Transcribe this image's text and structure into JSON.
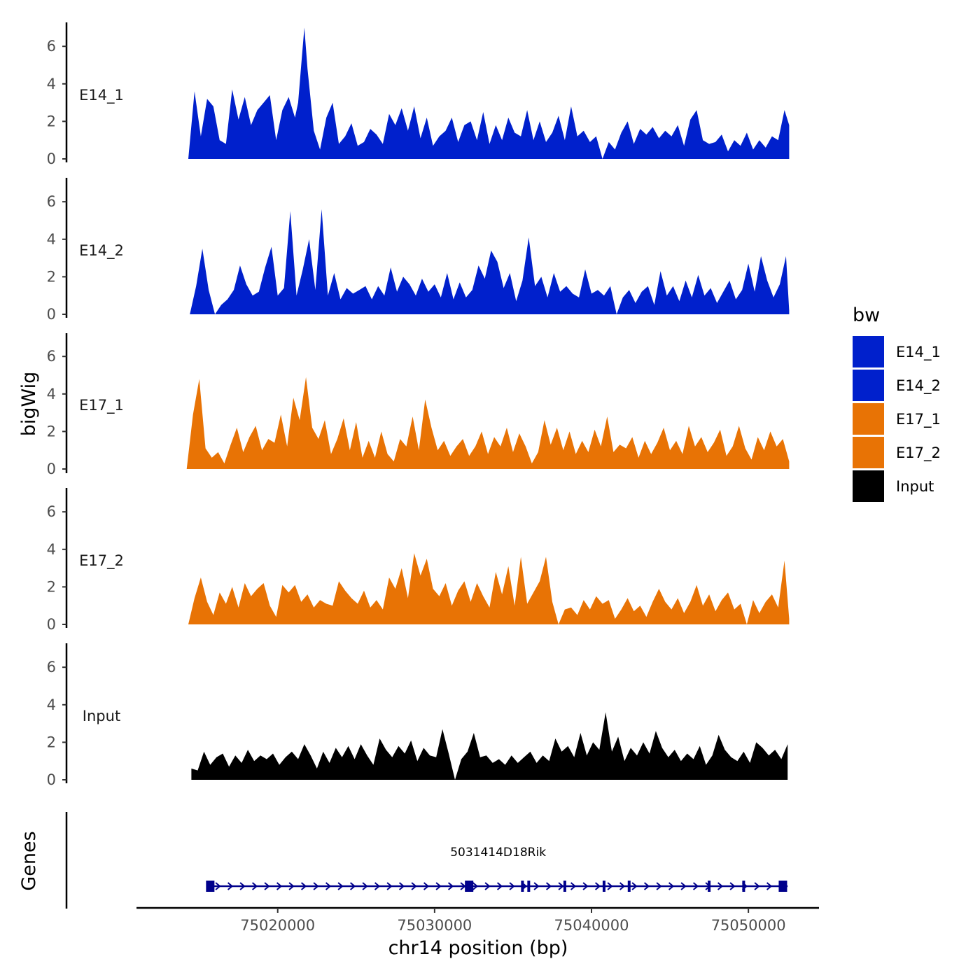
{
  "chart_data": {
    "type": "area",
    "chromosome": "chr14",
    "xlabel": "chr14 position (bp)",
    "ylabel": "bigWig",
    "genes_label": "Genes",
    "xlim": [
      75011000,
      75054500
    ],
    "ylim": [
      0,
      7.2
    ],
    "x_ticks": [
      {
        "value": 75020000,
        "label": "75020000"
      },
      {
        "value": 75030000,
        "label": "75030000"
      },
      {
        "value": 75040000,
        "label": "75040000"
      },
      {
        "value": 75050000,
        "label": "75050000"
      }
    ],
    "y_ticks": [
      {
        "value": 0,
        "label": "0"
      },
      {
        "value": 2,
        "label": "2"
      },
      {
        "value": 4,
        "label": "4"
      },
      {
        "value": 6,
        "label": "6"
      }
    ],
    "legend": {
      "title": "bw",
      "entries": [
        {
          "name": "E14_1",
          "color": "#0020CC"
        },
        {
          "name": "E14_2",
          "color": "#0020CC"
        },
        {
          "name": "E17_1",
          "color": "#E87305"
        },
        {
          "name": "E17_2",
          "color": "#E87305"
        },
        {
          "name": "Input",
          "color": "#000000"
        }
      ]
    },
    "series": [
      {
        "name": "E14_1",
        "color": "#0020CC",
        "x": [
          75014300,
          75014700,
          75015100,
          75015500,
          75015900,
          75016300,
          75016700,
          75017100,
          75017500,
          75017900,
          75018300,
          75018700,
          75019100,
          75019500,
          75019900,
          75020300,
          75020700,
          75021100,
          75021300,
          75021500,
          75021700,
          75021900,
          75022300,
          75022700,
          75023100,
          75023500,
          75023900,
          75024300,
          75024700,
          75025100,
          75025500,
          75025900,
          75026300,
          75026700,
          75027100,
          75027500,
          75027900,
          75028300,
          75028700,
          75029100,
          75029500,
          75029900,
          75030300,
          75030700,
          75031100,
          75031500,
          75031900,
          75032300,
          75032700,
          75033100,
          75033500,
          75033900,
          75034300,
          75034700,
          75035100,
          75035500,
          75035900,
          75036300,
          75036700,
          75037100,
          75037500,
          75037900,
          75038300,
          75038700,
          75039100,
          75039500,
          75039900,
          75040300,
          75040700,
          75041100,
          75041500,
          75041900,
          75042300,
          75042700,
          75043100,
          75043500,
          75043900,
          75044300,
          75044700,
          75045100,
          75045500,
          75045900,
          75046300,
          75046700,
          75047100,
          75047500,
          75047900,
          75048300,
          75048700,
          75049100,
          75049500,
          75049900,
          75050300,
          75050700,
          75051100,
          75051500,
          75051900,
          75052300,
          75052600
        ],
        "values": [
          0,
          3.6,
          1.2,
          3.2,
          2.8,
          1.0,
          0.8,
          3.7,
          2.1,
          3.3,
          1.8,
          2.6,
          3.0,
          3.4,
          1.0,
          2.6,
          3.3,
          2.2,
          3.0,
          5.0,
          7.0,
          4.8,
          1.5,
          0.5,
          2.2,
          3.0,
          0.8,
          1.2,
          1.9,
          0.7,
          0.9,
          1.6,
          1.3,
          0.8,
          2.4,
          1.8,
          2.7,
          1.5,
          2.8,
          1.1,
          2.2,
          0.7,
          1.2,
          1.5,
          2.2,
          0.9,
          1.8,
          2.0,
          1.0,
          2.5,
          0.8,
          1.8,
          1.0,
          2.2,
          1.4,
          1.2,
          2.6,
          1.0,
          2.0,
          0.9,
          1.4,
          2.3,
          1.0,
          2.8,
          1.2,
          1.5,
          0.9,
          1.2,
          0,
          0.9,
          0.5,
          1.4,
          2.0,
          0.8,
          1.6,
          1.3,
          1.7,
          1.1,
          1.5,
          1.2,
          1.8,
          0.7,
          2.1,
          2.6,
          1.0,
          0.8,
          0.9,
          1.3,
          0.4,
          1.0,
          0.7,
          1.4,
          0.5,
          1.0,
          0.6,
          1.2,
          1.0,
          2.6,
          1.8
        ]
      },
      {
        "name": "E14_2",
        "color": "#0020CC",
        "x": [
          75014400,
          75014800,
          75015200,
          75015600,
          75016000,
          75016400,
          75016800,
          75017200,
          75017600,
          75018000,
          75018400,
          75018800,
          75019200,
          75019600,
          75020000,
          75020400,
          75020800,
          75021200,
          75021600,
          75022000,
          75022400,
          75022800,
          75023200,
          75023600,
          75024000,
          75024400,
          75024800,
          75025200,
          75025600,
          75026000,
          75026400,
          75026800,
          75027200,
          75027600,
          75028000,
          75028400,
          75028800,
          75029200,
          75029600,
          75030000,
          75030400,
          75030800,
          75031200,
          75031600,
          75032000,
          75032400,
          75032800,
          75033200,
          75033600,
          75034000,
          75034400,
          75034800,
          75035200,
          75035600,
          75036000,
          75036400,
          75036800,
          75037200,
          75037600,
          75038000,
          75038400,
          75038800,
          75039200,
          75039600,
          75040000,
          75040400,
          75040800,
          75041200,
          75041600,
          75042000,
          75042400,
          75042800,
          75043200,
          75043600,
          75044000,
          75044400,
          75044800,
          75045200,
          75045600,
          75046000,
          75046400,
          75046800,
          75047200,
          75047600,
          75048000,
          75048400,
          75048800,
          75049200,
          75049600,
          75050000,
          75050400,
          75050800,
          75051200,
          75051600,
          75052000,
          75052400,
          75052600
        ],
        "values": [
          0,
          1.5,
          3.5,
          1.3,
          0,
          0.5,
          0.8,
          1.3,
          2.6,
          1.6,
          1.0,
          1.2,
          2.5,
          3.6,
          1.0,
          1.4,
          5.5,
          1.0,
          2.4,
          4.0,
          1.3,
          5.6,
          1.0,
          2.2,
          0.8,
          1.4,
          1.1,
          1.3,
          1.5,
          0.8,
          1.5,
          1.0,
          2.5,
          1.2,
          2.0,
          1.6,
          1.0,
          1.9,
          1.2,
          1.6,
          0.9,
          2.2,
          0.8,
          1.7,
          0.9,
          1.3,
          2.6,
          1.9,
          3.4,
          2.8,
          1.4,
          2.2,
          0.7,
          1.8,
          4.1,
          1.5,
          2.0,
          0.9,
          2.2,
          1.2,
          1.5,
          1.1,
          0.9,
          2.4,
          1.1,
          1.3,
          1.0,
          1.5,
          0,
          0.9,
          1.3,
          0.6,
          1.2,
          1.5,
          0.5,
          2.3,
          1.0,
          1.5,
          0.7,
          1.8,
          0.9,
          2.1,
          1.0,
          1.4,
          0.6,
          1.2,
          1.8,
          0.8,
          1.3,
          2.7,
          1.2,
          3.1,
          1.8,
          0.9,
          1.6,
          3.1,
          0.2
        ]
      },
      {
        "name": "E17_1",
        "color": "#E87305",
        "x": [
          75014200,
          75014600,
          75015000,
          75015400,
          75015800,
          75016200,
          75016600,
          75017000,
          75017400,
          75017800,
          75018200,
          75018600,
          75019000,
          75019400,
          75019800,
          75020200,
          75020600,
          75021000,
          75021400,
          75021800,
          75022200,
          75022600,
          75023000,
          75023400,
          75023800,
          75024200,
          75024600,
          75025000,
          75025400,
          75025800,
          75026200,
          75026600,
          75027000,
          75027400,
          75027800,
          75028200,
          75028600,
          75029000,
          75029400,
          75029800,
          75030200,
          75030600,
          75031000,
          75031400,
          75031800,
          75032200,
          75032600,
          75033000,
          75033400,
          75033800,
          75034200,
          75034600,
          75035000,
          75035400,
          75035800,
          75036200,
          75036600,
          75037000,
          75037400,
          75037800,
          75038200,
          75038600,
          75039000,
          75039400,
          75039800,
          75040200,
          75040600,
          75041000,
          75041400,
          75041800,
          75042200,
          75042600,
          75043000,
          75043400,
          75043800,
          75044200,
          75044600,
          75045000,
          75045400,
          75045800,
          75046200,
          75046600,
          75047000,
          75047400,
          75047800,
          75048200,
          75048600,
          75049000,
          75049400,
          75049800,
          75050200,
          75050600,
          75051000,
          75051400,
          75051800,
          75052200,
          75052600
        ],
        "values": [
          0,
          2.9,
          4.8,
          1.1,
          0.6,
          0.9,
          0.3,
          1.3,
          2.2,
          0.9,
          1.7,
          2.3,
          1.0,
          1.6,
          1.4,
          2.9,
          1.2,
          3.8,
          2.6,
          4.9,
          2.2,
          1.6,
          2.6,
          0.8,
          1.6,
          2.7,
          1.0,
          2.5,
          0.6,
          1.5,
          0.6,
          2.0,
          0.8,
          0.4,
          1.6,
          1.2,
          2.8,
          1.0,
          3.7,
          2.2,
          1.0,
          1.5,
          0.7,
          1.2,
          1.6,
          0.7,
          1.2,
          2.0,
          0.8,
          1.7,
          1.2,
          2.2,
          0.9,
          1.9,
          1.2,
          0.3,
          0.9,
          2.6,
          1.3,
          2.2,
          1.0,
          2.0,
          0.8,
          1.5,
          0.9,
          2.1,
          1.2,
          2.8,
          0.9,
          1.3,
          1.1,
          1.7,
          0.6,
          1.5,
          0.8,
          1.4,
          2.2,
          1.0,
          1.5,
          0.8,
          2.3,
          1.2,
          1.7,
          0.9,
          1.4,
          2.1,
          0.7,
          1.2,
          2.3,
          1.1,
          0.5,
          1.7,
          1.0,
          2.0,
          1.2,
          1.6,
          0.4
        ]
      },
      {
        "name": "E17_2",
        "color": "#E87305",
        "x": [
          75014300,
          75014700,
          75015100,
          75015500,
          75015900,
          75016300,
          75016700,
          75017100,
          75017500,
          75017900,
          75018300,
          75018700,
          75019100,
          75019500,
          75019900,
          75020300,
          75020700,
          75021100,
          75021500,
          75021900,
          75022300,
          75022700,
          75023100,
          75023500,
          75023900,
          75024300,
          75024700,
          75025100,
          75025500,
          75025900,
          75026300,
          75026700,
          75027100,
          75027500,
          75027900,
          75028300,
          75028700,
          75029100,
          75029500,
          75029900,
          75030300,
          75030700,
          75031100,
          75031500,
          75031900,
          75032300,
          75032700,
          75033100,
          75033500,
          75033900,
          75034300,
          75034700,
          75035100,
          75035500,
          75035900,
          75036300,
          75036700,
          75037100,
          75037500,
          75037900,
          75038300,
          75038700,
          75039100,
          75039500,
          75039900,
          75040300,
          75040700,
          75041100,
          75041500,
          75041900,
          75042300,
          75042700,
          75043100,
          75043500,
          75043900,
          75044300,
          75044700,
          75045100,
          75045500,
          75045900,
          75046300,
          75046700,
          75047100,
          75047500,
          75047900,
          75048300,
          75048700,
          75049100,
          75049500,
          75049900,
          75050300,
          75050700,
          75051100,
          75051500,
          75051900,
          75052300,
          75052600
        ],
        "values": [
          0,
          1.4,
          2.5,
          1.2,
          0.5,
          1.7,
          1.1,
          2.0,
          0.9,
          2.2,
          1.5,
          1.9,
          2.2,
          1.0,
          0.4,
          2.1,
          1.7,
          2.1,
          1.2,
          1.6,
          0.9,
          1.3,
          1.1,
          1.0,
          2.3,
          1.8,
          1.4,
          1.1,
          1.8,
          0.9,
          1.3,
          0.8,
          2.5,
          1.9,
          3.0,
          1.4,
          3.8,
          2.6,
          3.5,
          1.9,
          1.5,
          2.2,
          1.0,
          1.8,
          2.3,
          1.2,
          2.2,
          1.5,
          0.9,
          2.8,
          1.6,
          3.1,
          1.0,
          3.6,
          1.1,
          1.7,
          2.3,
          3.6,
          1.2,
          0,
          0.8,
          0.9,
          0.5,
          1.3,
          0.8,
          1.5,
          1.1,
          1.3,
          0.3,
          0.8,
          1.4,
          0.7,
          1.0,
          0.4,
          1.2,
          1.9,
          1.2,
          0.8,
          1.4,
          0.6,
          1.2,
          2.1,
          1.0,
          1.6,
          0.7,
          1.3,
          1.7,
          0.8,
          1.1,
          0,
          1.3,
          0.6,
          1.2,
          1.6,
          0.9,
          3.4,
          0.3
        ]
      },
      {
        "name": "Input",
        "color": "#000000",
        "x": [
          75014500,
          75014900,
          75015300,
          75015700,
          75016100,
          75016500,
          75016900,
          75017300,
          75017700,
          75018100,
          75018500,
          75018900,
          75019300,
          75019700,
          75020100,
          75020500,
          75020900,
          75021300,
          75021700,
          75022100,
          75022500,
          75022900,
          75023300,
          75023700,
          75024100,
          75024500,
          75024900,
          75025300,
          75025700,
          75026100,
          75026500,
          75026900,
          75027300,
          75027700,
          75028100,
          75028500,
          75028900,
          75029300,
          75029700,
          75030100,
          75030500,
          75030900,
          75031300,
          75031700,
          75032100,
          75032500,
          75032900,
          75033300,
          75033700,
          75034100,
          75034500,
          75034900,
          75035300,
          75035700,
          75036100,
          75036500,
          75036900,
          75037300,
          75037700,
          75038100,
          75038500,
          75038900,
          75039300,
          75039700,
          75040100,
          75040500,
          75040900,
          75041300,
          75041700,
          75042100,
          75042500,
          75042900,
          75043300,
          75043700,
          75044100,
          75044500,
          75044900,
          75045300,
          75045700,
          75046100,
          75046500,
          75046900,
          75047300,
          75047700,
          75048100,
          75048500,
          75048900,
          75049300,
          75049700,
          75050100,
          75050500,
          75050900,
          75051300,
          75051700,
          75052100,
          75052500
        ],
        "values": [
          0.6,
          0.5,
          1.5,
          0.8,
          1.2,
          1.4,
          0.7,
          1.3,
          0.9,
          1.6,
          1.0,
          1.3,
          1.1,
          1.4,
          0.8,
          1.2,
          1.5,
          1.1,
          1.9,
          1.3,
          0.6,
          1.5,
          0.9,
          1.7,
          1.2,
          1.8,
          1.1,
          1.9,
          1.3,
          0.8,
          2.2,
          1.6,
          1.2,
          1.8,
          1.4,
          2.1,
          1.0,
          1.7,
          1.3,
          1.2,
          2.7,
          1.4,
          0,
          1.1,
          1.5,
          2.5,
          1.2,
          1.3,
          0.9,
          1.1,
          0.8,
          1.3,
          0.9,
          1.2,
          1.5,
          0.9,
          1.3,
          1.0,
          2.2,
          1.5,
          1.8,
          1.2,
          2.5,
          1.3,
          2.0,
          1.6,
          3.6,
          1.5,
          2.3,
          1.0,
          1.7,
          1.3,
          2.0,
          1.4,
          2.6,
          1.7,
          1.2,
          1.6,
          1.0,
          1.4,
          1.1,
          1.8,
          0.8,
          1.3,
          2.4,
          1.6,
          1.2,
          1.0,
          1.5,
          0.9,
          2.0,
          1.7,
          1.3,
          1.6,
          1.1,
          1.9
        ]
      }
    ],
    "gene": {
      "name": "5031414D18Rik",
      "start": 75015600,
      "end": 75052500,
      "strand": "+",
      "color": "#00008B",
      "exons": [
        75015700,
        75032200,
        75035600,
        75036000,
        75038300,
        75040800,
        75042400,
        75047500,
        75049700,
        75052200
      ]
    }
  }
}
